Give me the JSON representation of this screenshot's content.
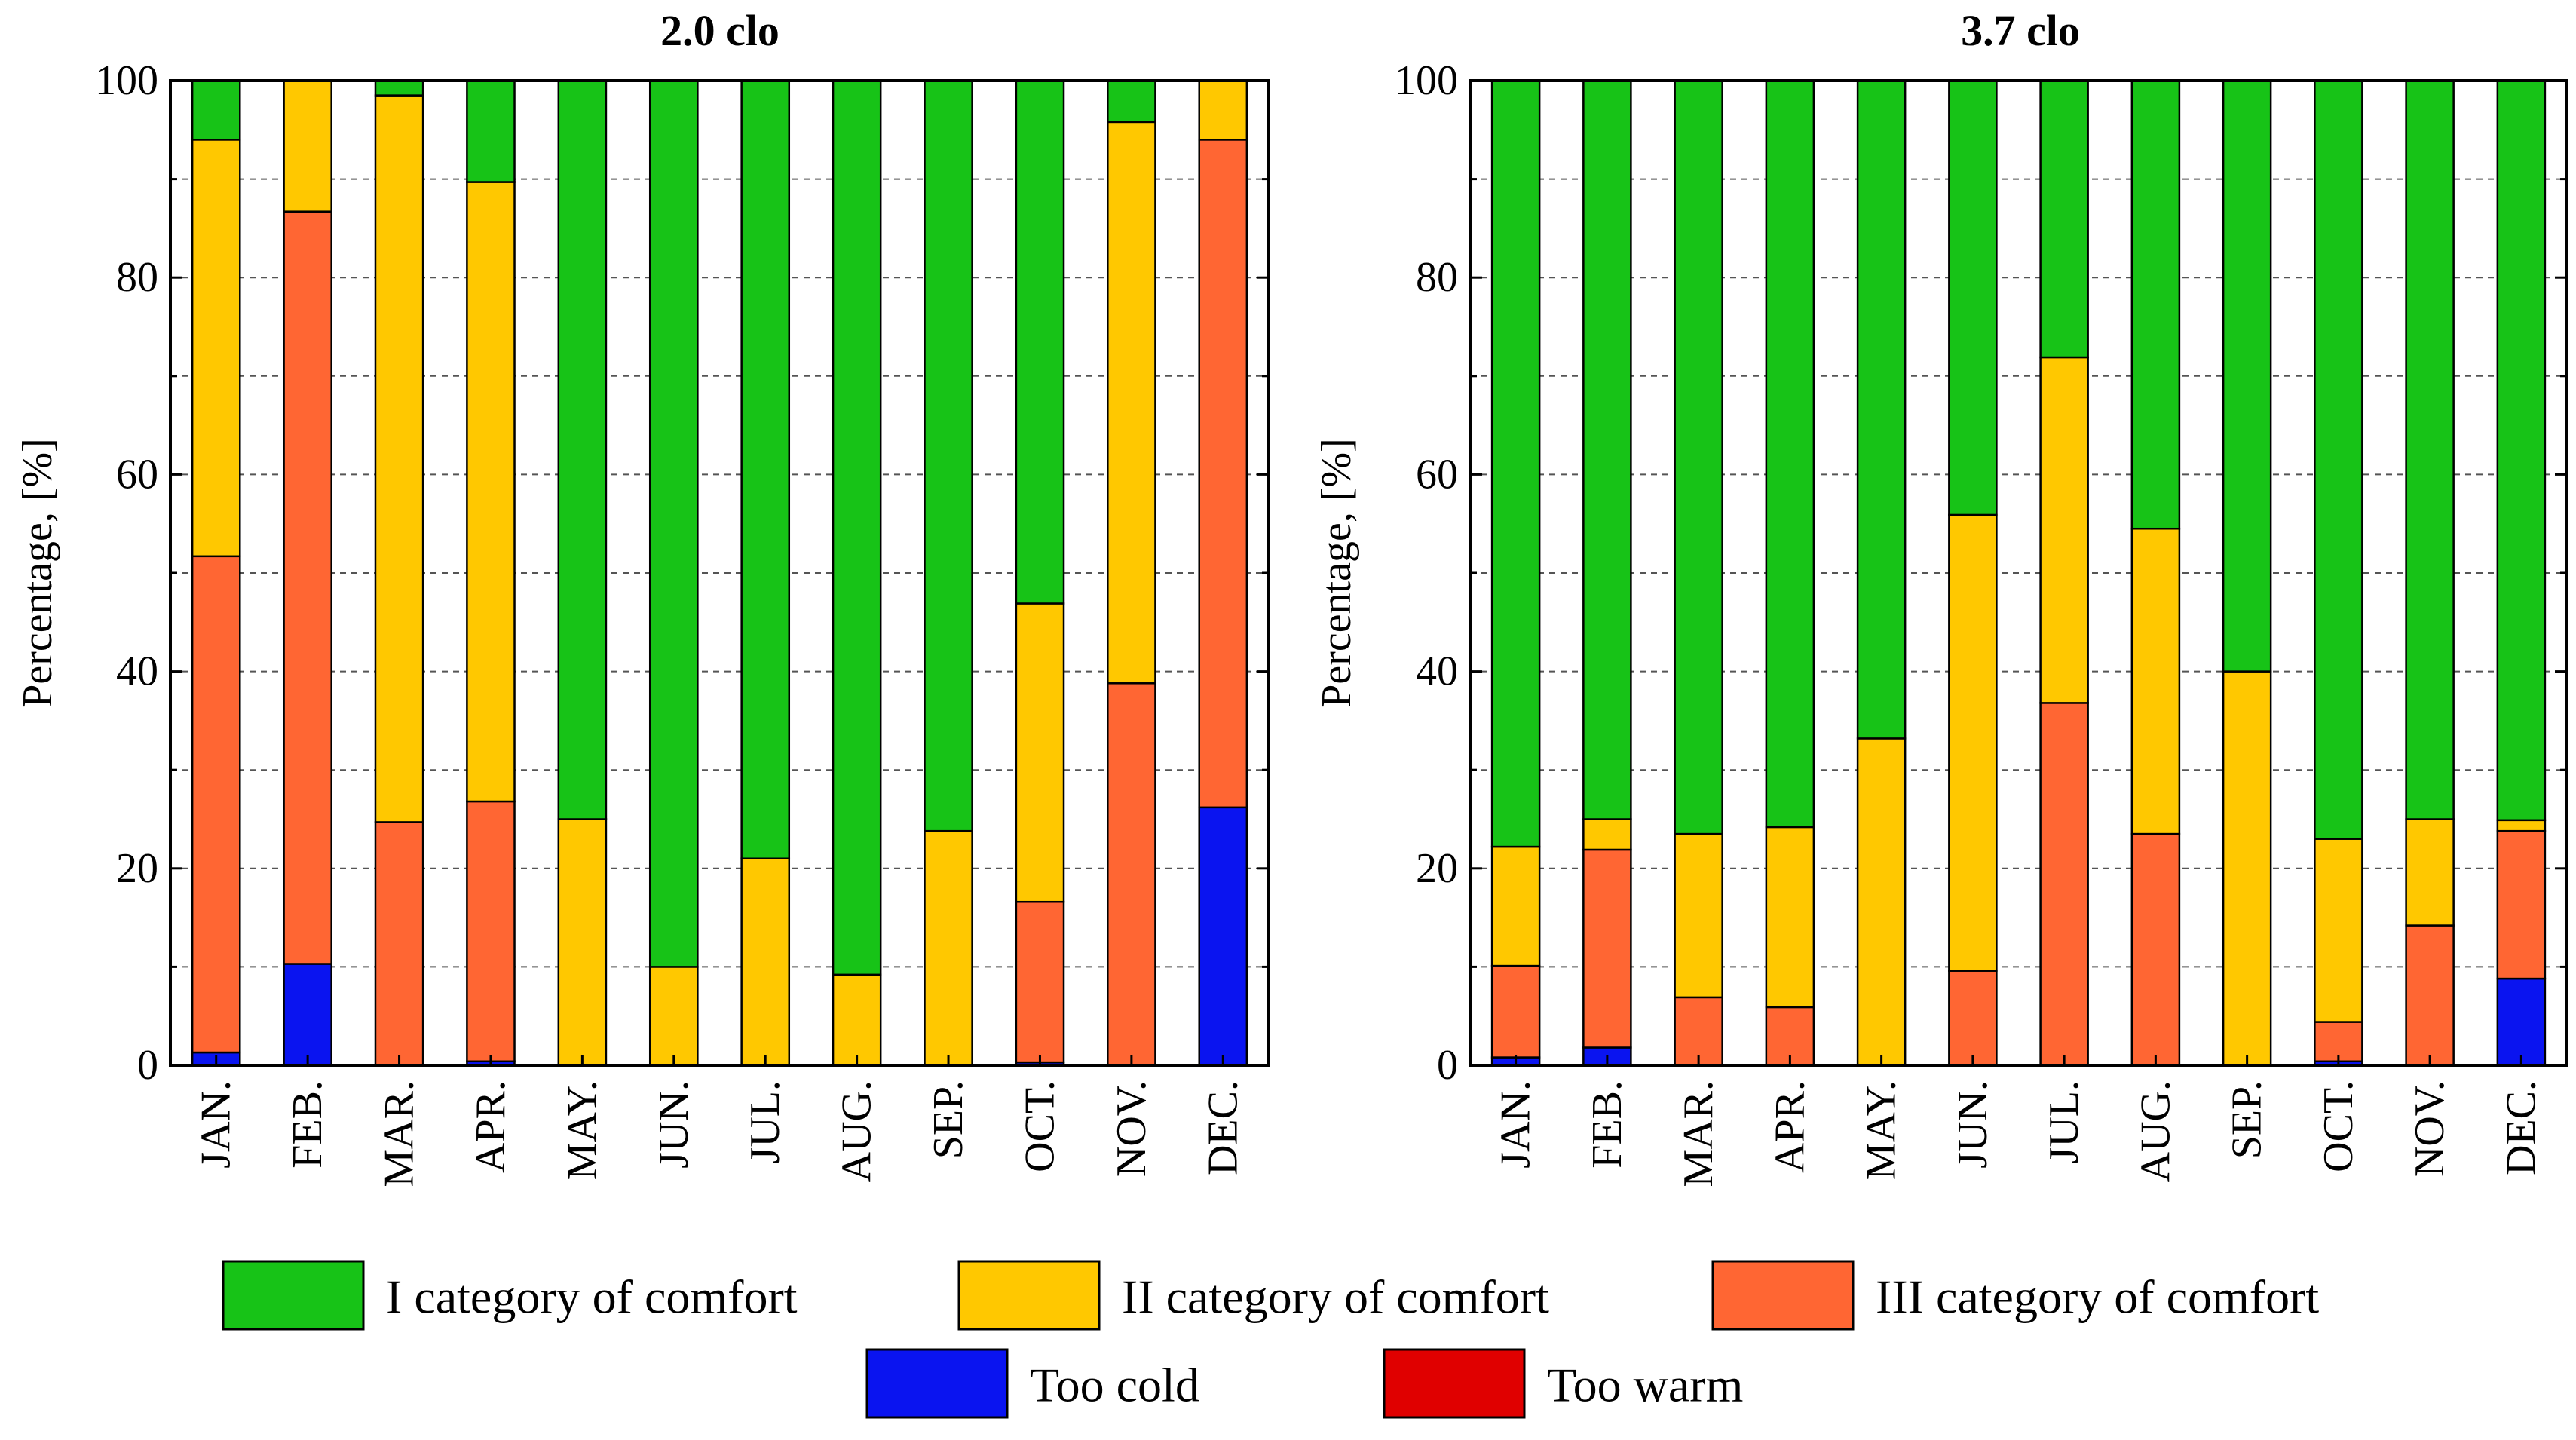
{
  "chart_data": [
    {
      "type": "bar",
      "stacked": true,
      "title": "2.0 clo",
      "ylabel": "Percentage, [%]",
      "xlabel": "",
      "ylim": [
        0,
        100
      ],
      "yticks": [
        0,
        20,
        40,
        60,
        80,
        100
      ],
      "grid": "horizontal dashed",
      "categories": [
        "JAN.",
        "FEB.",
        "MAR.",
        "APR.",
        "MAY.",
        "JUN.",
        "JUL.",
        "AUG.",
        "SEP.",
        "OCT.",
        "NOV.",
        "DEC."
      ],
      "series": [
        {
          "name": "Too cold",
          "values": [
            1.3,
            10.3,
            0,
            0.4,
            0,
            0,
            0,
            0,
            0,
            0.3,
            0,
            26.2
          ]
        },
        {
          "name": "III category of comfort",
          "values": [
            50.4,
            76.4,
            24.7,
            26.4,
            0,
            0,
            0,
            0,
            0,
            16.3,
            38.8,
            67.8
          ]
        },
        {
          "name": "II category of comfort",
          "values": [
            42.3,
            13.3,
            73.8,
            62.9,
            25.0,
            10.0,
            21.0,
            9.2,
            23.8,
            30.3,
            57.0,
            6.0
          ]
        },
        {
          "name": "I category of comfort",
          "values": [
            6.0,
            0,
            1.5,
            10.3,
            75.0,
            90.0,
            79.0,
            90.8,
            76.2,
            53.1,
            4.2,
            0
          ]
        },
        {
          "name": "Too warm",
          "values": [
            0,
            0,
            0,
            0,
            0,
            0,
            0,
            0,
            0,
            0,
            0,
            0
          ]
        }
      ]
    },
    {
      "type": "bar",
      "stacked": true,
      "title": "3.7 clo",
      "ylabel": "Percentage, [%]",
      "xlabel": "",
      "ylim": [
        0,
        100
      ],
      "yticks": [
        0,
        20,
        40,
        60,
        80,
        100
      ],
      "grid": "horizontal dashed",
      "categories": [
        "JAN.",
        "FEB.",
        "MAR.",
        "APR.",
        "MAY.",
        "JUN.",
        "JUL.",
        "AUG.",
        "SEP.",
        "OCT.",
        "NOV.",
        "DEC."
      ],
      "series": [
        {
          "name": "Too cold",
          "values": [
            0.8,
            1.8,
            0,
            0,
            0,
            0,
            0,
            0,
            0,
            0.4,
            0,
            8.8
          ]
        },
        {
          "name": "III category of comfort",
          "values": [
            9.3,
            20.1,
            6.9,
            5.9,
            0,
            9.6,
            36.8,
            23.5,
            0,
            4.0,
            14.2,
            15.0
          ]
        },
        {
          "name": "II category of comfort",
          "values": [
            12.1,
            3.1,
            16.6,
            18.3,
            33.2,
            46.3,
            35.1,
            31.0,
            40.0,
            18.6,
            10.8,
            1.1
          ]
        },
        {
          "name": "I category of comfort",
          "values": [
            77.8,
            75.0,
            76.5,
            75.8,
            66.8,
            44.1,
            28.1,
            45.5,
            60.0,
            77.0,
            75.0,
            75.1
          ]
        },
        {
          "name": "Too warm",
          "values": [
            0,
            0,
            0,
            0,
            0,
            0,
            0,
            0,
            0,
            0,
            0,
            0
          ]
        }
      ]
    }
  ],
  "colors": {
    "I category of comfort": "#17c317",
    "II category of comfort": "#ffc800",
    "III category of comfort": "#ff6633",
    "Too cold": "#0a14f0",
    "Too warm": "#e00000"
  },
  "legend": {
    "items": [
      {
        "label": "I category of comfort",
        "color": "#17c317"
      },
      {
        "label": "II category of comfort",
        "color": "#ffc800"
      },
      {
        "label": "III category of comfort",
        "color": "#ff6633"
      },
      {
        "label": "Too cold",
        "color": "#0a14f0"
      },
      {
        "label": "Too warm",
        "color": "#e00000"
      }
    ]
  }
}
